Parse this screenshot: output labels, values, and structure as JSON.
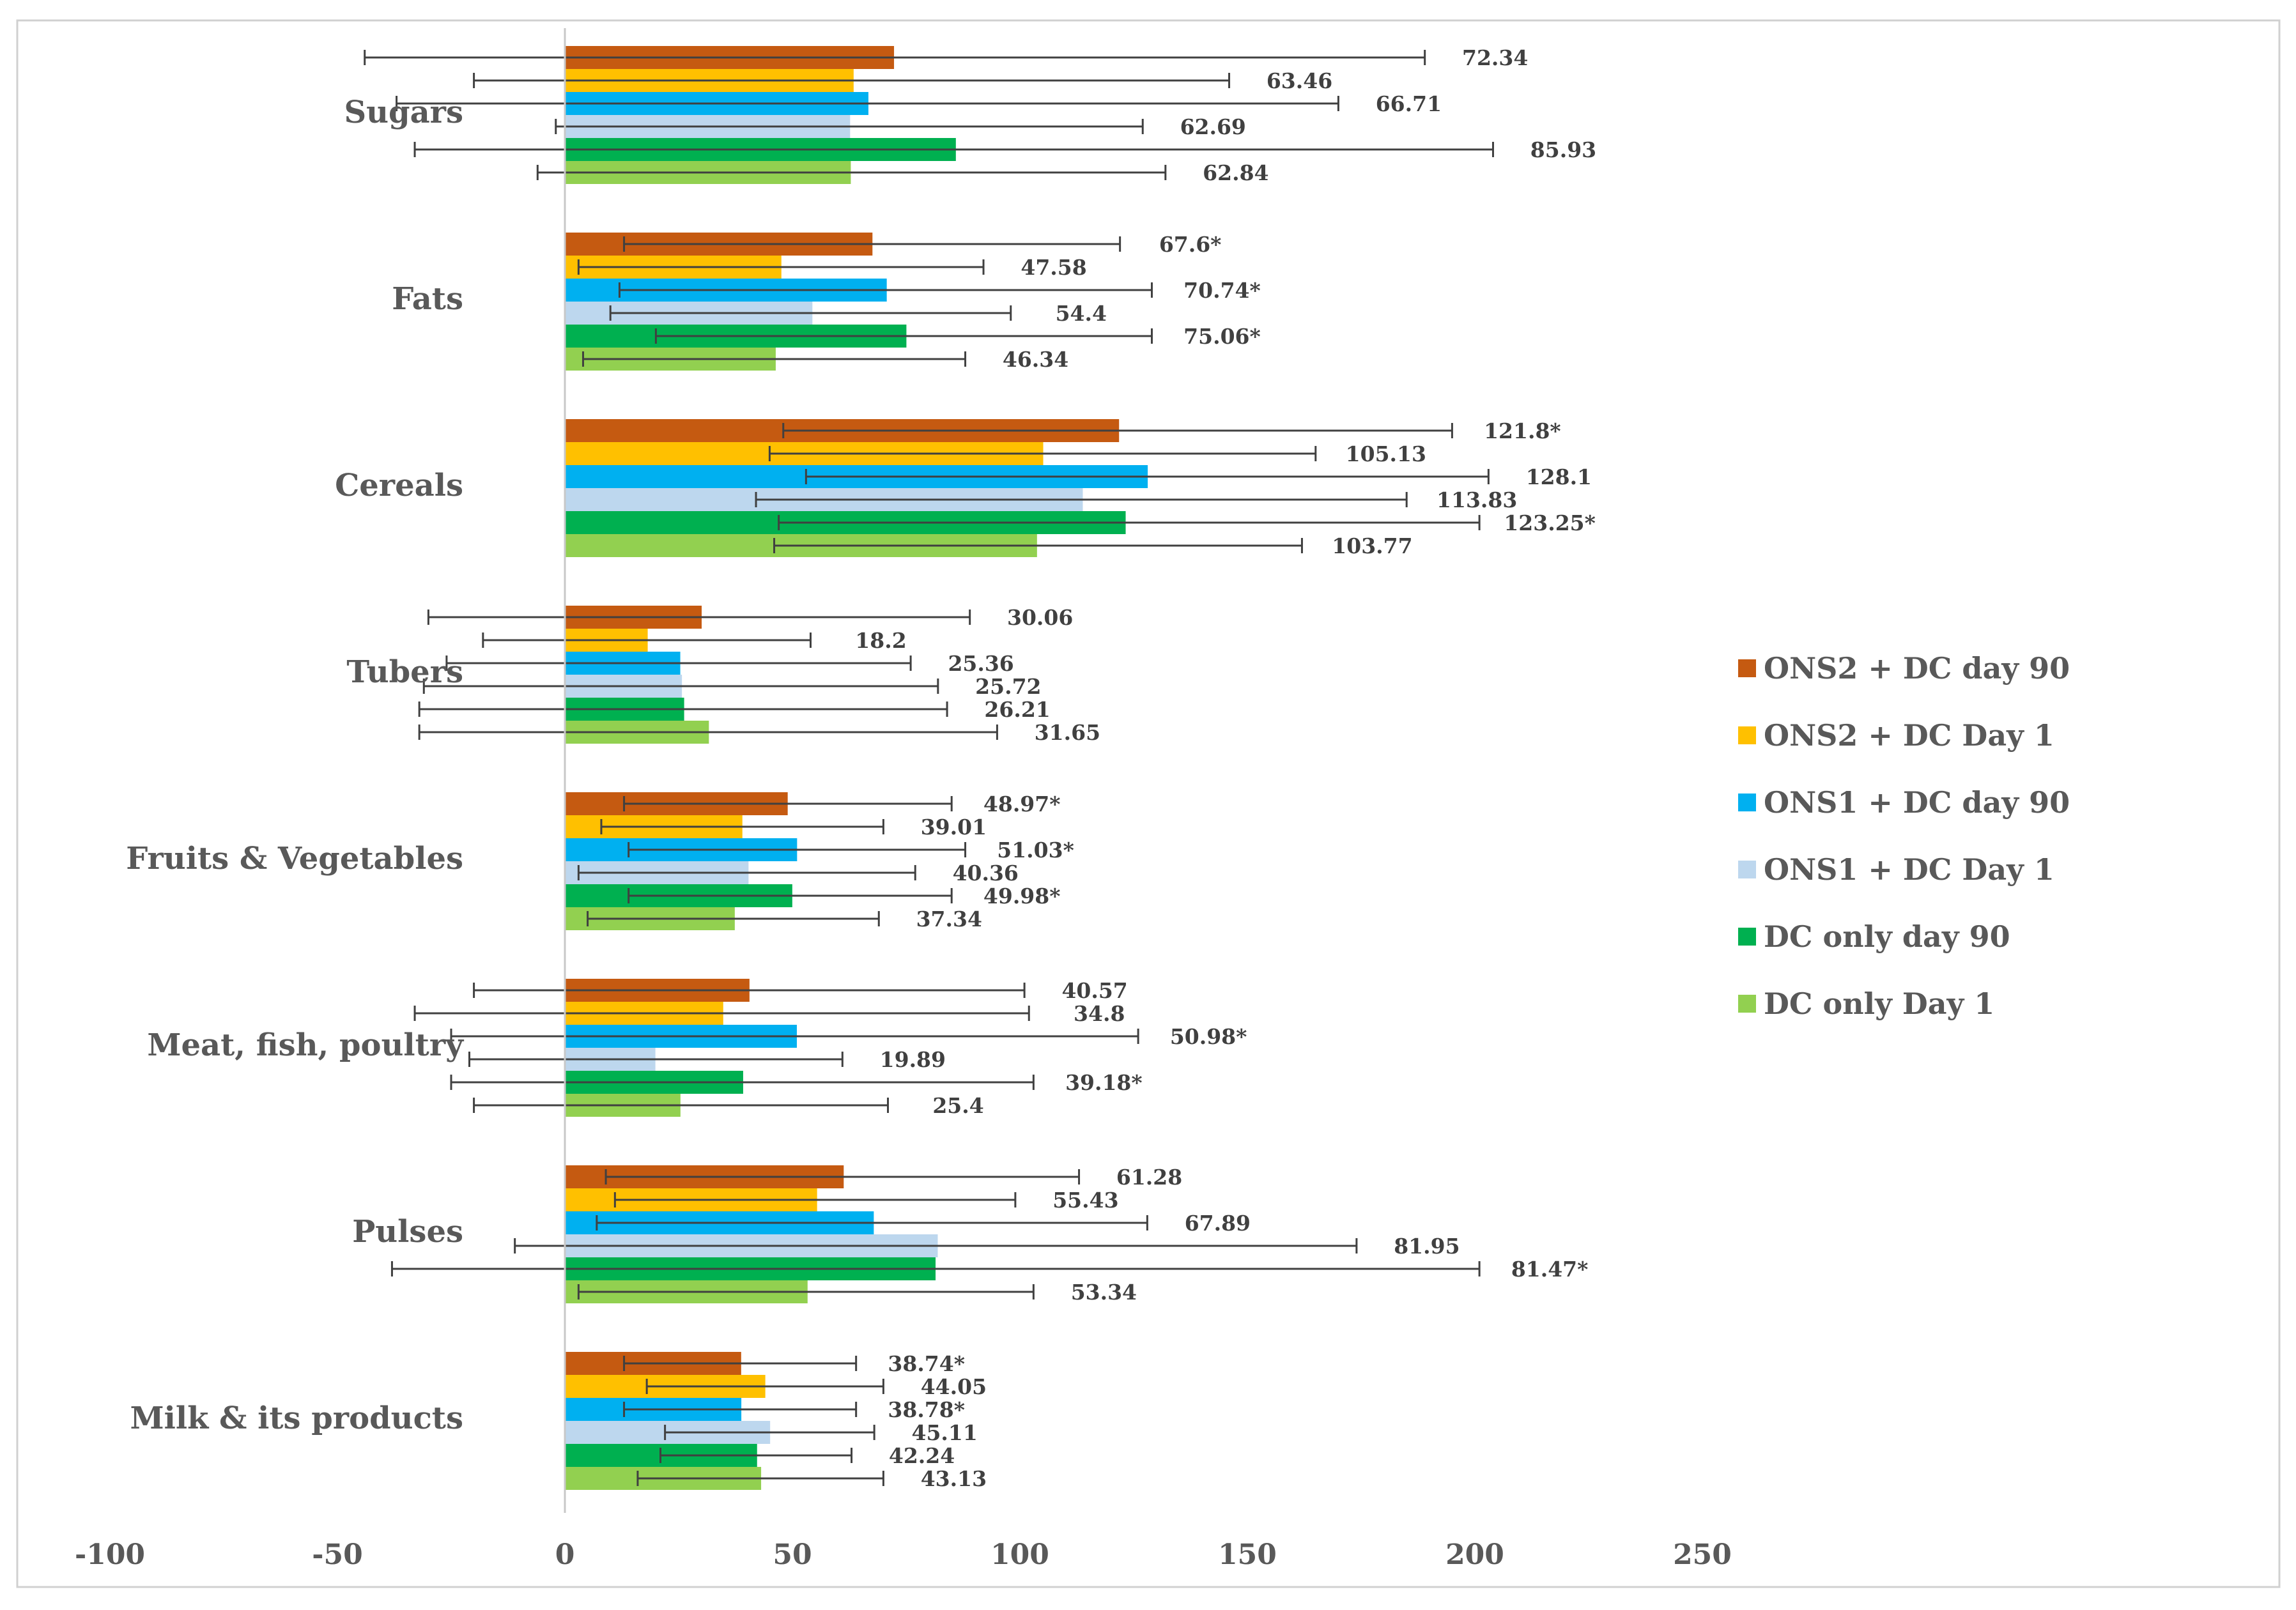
{
  "chart_data": {
    "type": "bar",
    "orientation": "horizontal",
    "title": "",
    "xlabel": "",
    "ylabel": "",
    "xlim": [
      -100,
      250
    ],
    "x_ticks": [
      "-100",
      "-50",
      "0",
      "50",
      "100",
      "150",
      "200",
      "250"
    ],
    "x_tick_values": [
      -100,
      -50,
      0,
      50,
      100,
      150,
      200,
      250
    ],
    "grid": false,
    "legend_position": "right",
    "categories": [
      "Sugars",
      "Fats",
      "Cereals",
      "Tubers",
      "Fruits & Vegetables",
      "Meat, fish, poultry",
      "Pulses",
      "Milk & its products"
    ],
    "series": [
      {
        "name": "ONS2 + DC day 90",
        "color": "#C55A11",
        "values": [
          72.34,
          67.6,
          121.8,
          30.06,
          48.97,
          40.57,
          61.28,
          38.74
        ],
        "labels": [
          "72.34",
          "67.6*",
          "121.8*",
          "30.06",
          "48.97*",
          "40.57",
          "61.28",
          "38.74*"
        ],
        "error_low": [
          -44,
          13,
          48,
          -30,
          13,
          -20,
          9,
          13
        ],
        "error_high": [
          189,
          122,
          195,
          89,
          85,
          101,
          113,
          64
        ]
      },
      {
        "name": "ONS2 + DC Day 1",
        "color": "#FFC000",
        "values": [
          63.46,
          47.58,
          105.13,
          18.2,
          39.01,
          34.8,
          55.43,
          44.05
        ],
        "labels": [
          "63.46",
          "47.58",
          "105.13",
          "18.2",
          "39.01",
          "34.8",
          "55.43",
          "44.05"
        ],
        "error_low": [
          -20,
          3,
          45,
          -18,
          8,
          -33,
          11,
          18
        ],
        "error_high": [
          146,
          92,
          165,
          54,
          70,
          102,
          99,
          70
        ]
      },
      {
        "name": "ONS1 + DC day 90",
        "color": "#00B0F0",
        "values": [
          66.71,
          70.74,
          128.1,
          25.36,
          51.03,
          50.98,
          67.89,
          38.78
        ],
        "labels": [
          "66.71",
          "70.74*",
          "128.1",
          "25.36",
          "51.03*",
          "50.98*",
          "67.89",
          "38.78*"
        ],
        "error_low": [
          -37,
          12,
          53,
          -26,
          14,
          -25,
          7,
          13
        ],
        "error_high": [
          170,
          129,
          203,
          76,
          88,
          126,
          128,
          64
        ]
      },
      {
        "name": "ONS1 + DC Day 1",
        "color": "#BDD7EE",
        "values": [
          62.69,
          54.4,
          113.83,
          25.72,
          40.36,
          19.89,
          81.95,
          45.11
        ],
        "labels": [
          "62.69",
          "54.4",
          "113.83",
          "25.72",
          "40.36",
          "19.89",
          "81.95",
          "45.11"
        ],
        "error_low": [
          -2,
          10,
          42,
          -31,
          3,
          -21,
          -11,
          22
        ],
        "error_high": [
          127,
          98,
          185,
          82,
          77,
          61,
          174,
          68
        ]
      },
      {
        "name": "DC only day 90",
        "color": "#00B050",
        "values": [
          85.93,
          75.06,
          123.25,
          26.21,
          49.98,
          39.18,
          81.47,
          42.24
        ],
        "labels": [
          "85.93",
          "75.06*",
          "123.25*",
          "26.21",
          "49.98*",
          "39.18*",
          "81.47*",
          "42.24"
        ],
        "error_low": [
          -33,
          20,
          47,
          -32,
          14,
          -25,
          -38,
          21
        ],
        "error_high": [
          204,
          129,
          201,
          84,
          85,
          103,
          201,
          63
        ]
      },
      {
        "name": "DC only Day 1",
        "color": "#92D050",
        "values": [
          62.84,
          46.34,
          103.77,
          31.65,
          37.34,
          25.4,
          53.34,
          43.13
        ],
        "labels": [
          "62.84",
          "46.34",
          "103.77",
          "31.65",
          "37.34",
          "25.4",
          "53.34",
          "43.13"
        ],
        "error_low": [
          -6,
          4,
          46,
          -32,
          5,
          -20,
          3,
          16
        ],
        "error_high": [
          132,
          88,
          162,
          95,
          69,
          71,
          103,
          70
        ]
      }
    ]
  }
}
